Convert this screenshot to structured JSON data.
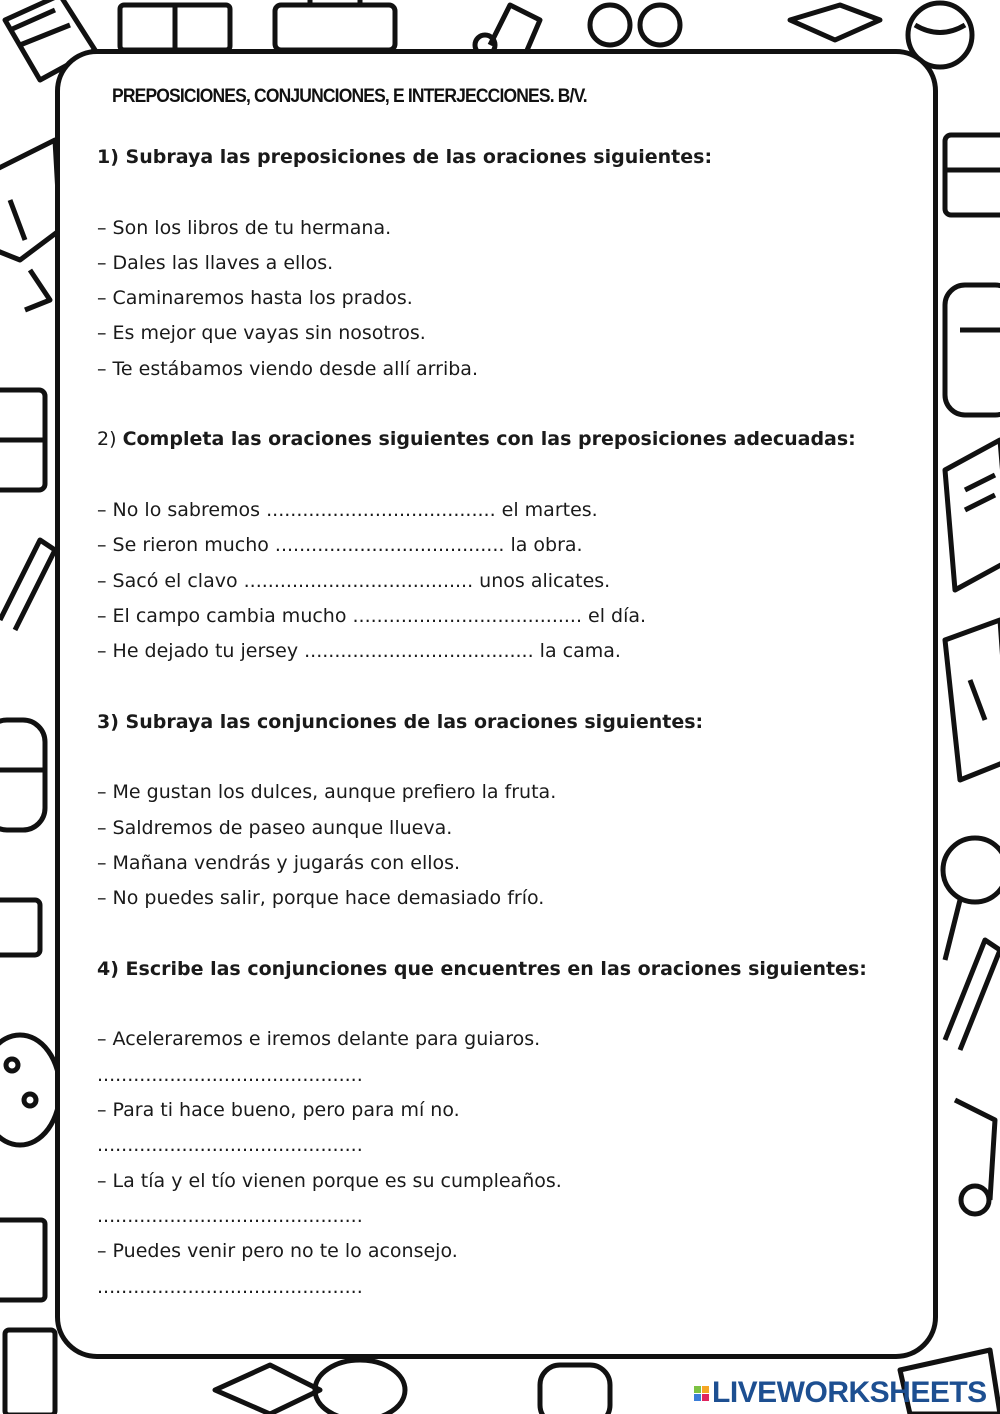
{
  "title": "PREPOSICIONES, CONJUNCIONES, E INTERJECCIONES. B/V.",
  "sections": [
    {
      "heading_num": "1)",
      "heading": "Subraya las preposiciones de las oraciones siguientes:",
      "items": [
        "– Son los libros de tu hermana.",
        "– Dales las llaves a ellos.",
        "– Caminaremos hasta los prados.",
        "– Es mejor que vayas sin nosotros.",
        "– Te estábamos viendo desde allí arriba."
      ]
    },
    {
      "heading_num": "2)",
      "heading": "Completa las oraciones siguientes con las preposiciones adecuadas:",
      "items": [
        "– No lo sabremos ...................................... el martes.",
        "– Se rieron mucho ...................................... la obra.",
        "– Sacó el clavo ...................................... unos alicates.",
        "– El campo cambia mucho ...................................... el día.",
        "– He dejado tu jersey ...................................... la cama."
      ]
    },
    {
      "heading_num": "3)",
      "heading": "Subraya las conjunciones de las oraciones siguientes:",
      "items": [
        "– Me gustan los dulces, aunque prefiero la fruta.",
        "– Saldremos de paseo aunque llueva.",
        "– Mañana vendrás y jugarás con ellos.",
        "– No puedes salir, porque hace demasiado frío."
      ]
    },
    {
      "heading_num": "4)",
      "heading": "Escribe las conjunciones que encuentres en las oraciones siguientes:",
      "items": [
        "– Aceleraremos e iremos delante para guiaros.",
        "............................................",
        "– Para ti hace bueno, pero para mí no.",
        "............................................",
        "– La tía y el tío vienen porque es su cumpleaños.",
        "............................................",
        "– Puedes venir pero no te lo aconsejo.",
        "............................................"
      ]
    }
  ],
  "logo": {
    "text": "LIVEWORKSHEETS",
    "letters": [
      "L",
      "I",
      "V",
      "E"
    ],
    "colors": [
      "#7cc243",
      "#f5a623",
      "#3b7dd8",
      "#e0245e"
    ],
    "text_color": "#1d4f91"
  }
}
